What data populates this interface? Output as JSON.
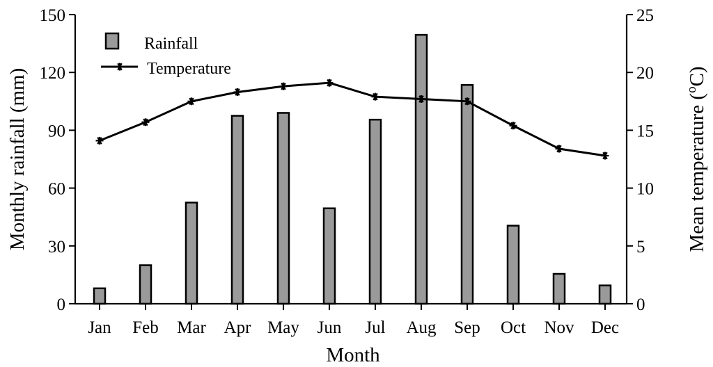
{
  "chart_data": {
    "type": "bar+line",
    "categories": [
      "Jan",
      "Feb",
      "Mar",
      "Apr",
      "May",
      "Jun",
      "Jul",
      "Aug",
      "Sep",
      "Oct",
      "Nov",
      "Dec"
    ],
    "series": [
      {
        "name": "Rainfall",
        "type": "bar",
        "axis": "left",
        "values": [
          8,
          20,
          52.5,
          97.5,
          99,
          49.5,
          95.5,
          139.5,
          113.5,
          40.5,
          15.5,
          9.5
        ]
      },
      {
        "name": "Temperature",
        "type": "line",
        "axis": "right",
        "marker": "asterisk",
        "values": [
          14.1,
          15.7,
          17.5,
          18.3,
          18.8,
          19.1,
          17.9,
          17.7,
          17.5,
          15.4,
          13.4,
          12.8
        ]
      }
    ],
    "xlabel": "Month",
    "ylabel_left": "Monthly rainfall (mm)",
    "ylabel_right": "Mean temperature (°C)",
    "ylim_left": [
      0,
      150
    ],
    "ylim_right": [
      0,
      25
    ],
    "yticks_left": [
      "0",
      "30",
      "60",
      "90",
      "120",
      "150"
    ],
    "yticks_right": [
      "0",
      "5",
      "10",
      "15",
      "20",
      "25"
    ],
    "grid": false,
    "legend_position": "top-left",
    "colors": {
      "bar_fill": "#9a9a9a",
      "bar_stroke": "#000000",
      "line": "#000000"
    }
  }
}
